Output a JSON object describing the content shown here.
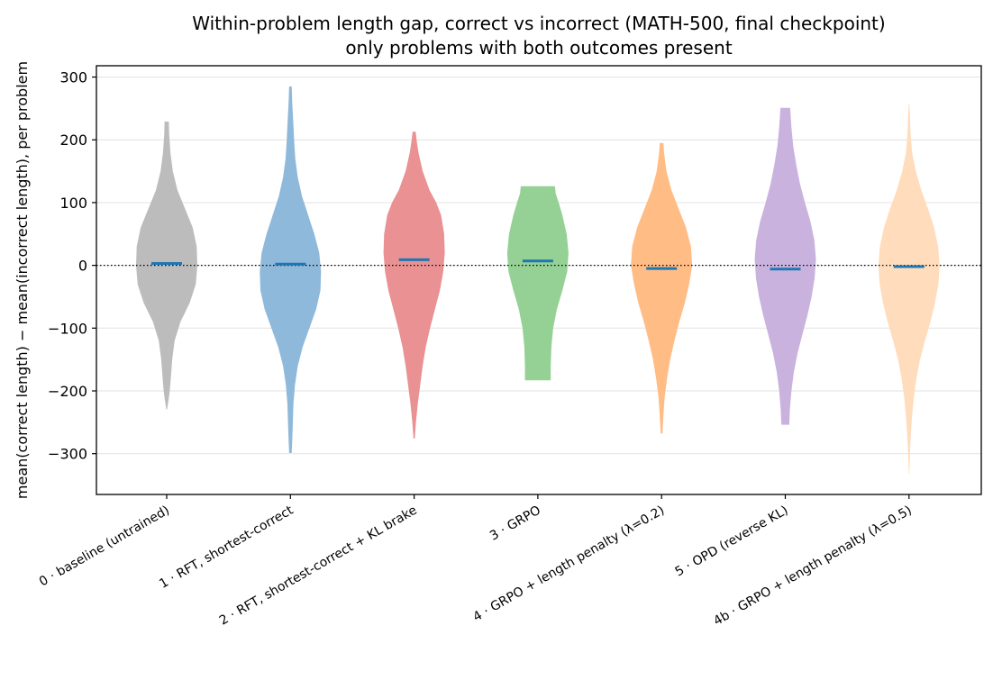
{
  "chart_data": {
    "type": "violin",
    "title": "Within-problem length gap, correct vs incorrect (MATH-500, final checkpoint)",
    "subtitle": "only problems with both outcomes present",
    "ylabel": "mean(correct length) − mean(incorrect length), per problem",
    "xlabel": "",
    "ylim": [
      -365,
      318
    ],
    "yticks": [
      300,
      200,
      100,
      0,
      -100,
      -200,
      -300
    ],
    "grid": "horizontal",
    "reference_line": {
      "y": 0,
      "style": "dotted"
    },
    "categories": [
      "0 · baseline (untrained)",
      "1 · RFT, shortest-correct",
      "2 · RFT, shortest-correct + KL brake",
      "3 · GRPO",
      "4 · GRPO + length penalty (λ=0.2)",
      "5 · OPD (reverse KL)",
      "4b · GRPO + length penalty (λ=0.5)"
    ],
    "colors": [
      "#bcbcbc",
      "#8fb9da",
      "#e99193",
      "#95d095",
      "#ffbc85",
      "#c9b3de",
      "#ffdcbc"
    ],
    "median_color": "#1f77b4",
    "medians": [
      3,
      2,
      9,
      7,
      -5,
      -6,
      -2
    ],
    "violins": [
      {
        "profile": [
          [
            -230,
            0.01
          ],
          [
            -215,
            0.06
          ],
          [
            -200,
            0.1
          ],
          [
            -175,
            0.14
          ],
          [
            -150,
            0.18
          ],
          [
            -120,
            0.26
          ],
          [
            -90,
            0.45
          ],
          [
            -60,
            0.75
          ],
          [
            -30,
            0.95
          ],
          [
            0,
            1.0
          ],
          [
            30,
            0.98
          ],
          [
            60,
            0.85
          ],
          [
            90,
            0.6
          ],
          [
            120,
            0.35
          ],
          [
            150,
            0.2
          ],
          [
            180,
            0.12
          ],
          [
            210,
            0.08
          ],
          [
            229,
            0.07
          ]
        ]
      },
      {
        "profile": [
          [
            -299,
            0.04
          ],
          [
            -280,
            0.06
          ],
          [
            -250,
            0.08
          ],
          [
            -220,
            0.1
          ],
          [
            -190,
            0.15
          ],
          [
            -160,
            0.24
          ],
          [
            -130,
            0.4
          ],
          [
            -100,
            0.62
          ],
          [
            -70,
            0.84
          ],
          [
            -40,
            0.98
          ],
          [
            -10,
            1.0
          ],
          [
            20,
            0.94
          ],
          [
            50,
            0.78
          ],
          [
            80,
            0.58
          ],
          [
            110,
            0.38
          ],
          [
            140,
            0.24
          ],
          [
            170,
            0.16
          ],
          [
            200,
            0.12
          ],
          [
            230,
            0.09
          ],
          [
            260,
            0.06
          ],
          [
            285,
            0.04
          ]
        ]
      },
      {
        "profile": [
          [
            -276,
            0.02
          ],
          [
            -250,
            0.06
          ],
          [
            -220,
            0.12
          ],
          [
            -190,
            0.2
          ],
          [
            -160,
            0.28
          ],
          [
            -130,
            0.38
          ],
          [
            -100,
            0.52
          ],
          [
            -70,
            0.68
          ],
          [
            -40,
            0.84
          ],
          [
            -10,
            0.95
          ],
          [
            20,
            1.0
          ],
          [
            50,
            0.98
          ],
          [
            80,
            0.88
          ],
          [
            100,
            0.72
          ],
          [
            120,
            0.5
          ],
          [
            150,
            0.28
          ],
          [
            180,
            0.14
          ],
          [
            200,
            0.08
          ],
          [
            213,
            0.05
          ]
        ]
      },
      {
        "profile": [
          [
            -183,
            0.42
          ],
          [
            -160,
            0.42
          ],
          [
            -130,
            0.44
          ],
          [
            -100,
            0.5
          ],
          [
            -70,
            0.62
          ],
          [
            -40,
            0.8
          ],
          [
            -10,
            0.96
          ],
          [
            20,
            1.0
          ],
          [
            50,
            0.94
          ],
          [
            80,
            0.8
          ],
          [
            100,
            0.68
          ],
          [
            115,
            0.58
          ],
          [
            126,
            0.56
          ]
        ]
      },
      {
        "profile": [
          [
            -268,
            0.03
          ],
          [
            -240,
            0.06
          ],
          [
            -210,
            0.1
          ],
          [
            -180,
            0.18
          ],
          [
            -150,
            0.28
          ],
          [
            -120,
            0.42
          ],
          [
            -90,
            0.58
          ],
          [
            -60,
            0.76
          ],
          [
            -30,
            0.9
          ],
          [
            0,
            1.0
          ],
          [
            30,
            0.96
          ],
          [
            60,
            0.8
          ],
          [
            90,
            0.56
          ],
          [
            120,
            0.32
          ],
          [
            150,
            0.16
          ],
          [
            180,
            0.08
          ],
          [
            195,
            0.06
          ]
        ]
      },
      {
        "profile": [
          [
            -254,
            0.13
          ],
          [
            -230,
            0.15
          ],
          [
            -200,
            0.2
          ],
          [
            -170,
            0.28
          ],
          [
            -140,
            0.4
          ],
          [
            -110,
            0.56
          ],
          [
            -80,
            0.72
          ],
          [
            -50,
            0.86
          ],
          [
            -20,
            0.96
          ],
          [
            10,
            1.0
          ],
          [
            40,
            0.95
          ],
          [
            70,
            0.82
          ],
          [
            100,
            0.64
          ],
          [
            130,
            0.48
          ],
          [
            160,
            0.36
          ],
          [
            190,
            0.26
          ],
          [
            220,
            0.2
          ],
          [
            251,
            0.16
          ]
        ]
      },
      {
        "profile": [
          [
            -333,
            0.01
          ],
          [
            -300,
            0.03
          ],
          [
            -270,
            0.06
          ],
          [
            -240,
            0.1
          ],
          [
            -210,
            0.16
          ],
          [
            -180,
            0.24
          ],
          [
            -150,
            0.36
          ],
          [
            -120,
            0.52
          ],
          [
            -90,
            0.7
          ],
          [
            -60,
            0.85
          ],
          [
            -30,
            0.96
          ],
          [
            0,
            1.0
          ],
          [
            30,
            0.95
          ],
          [
            60,
            0.82
          ],
          [
            90,
            0.62
          ],
          [
            120,
            0.4
          ],
          [
            150,
            0.22
          ],
          [
            180,
            0.1
          ],
          [
            210,
            0.05
          ],
          [
            240,
            0.03
          ],
          [
            258,
            0.01
          ]
        ]
      }
    ]
  }
}
